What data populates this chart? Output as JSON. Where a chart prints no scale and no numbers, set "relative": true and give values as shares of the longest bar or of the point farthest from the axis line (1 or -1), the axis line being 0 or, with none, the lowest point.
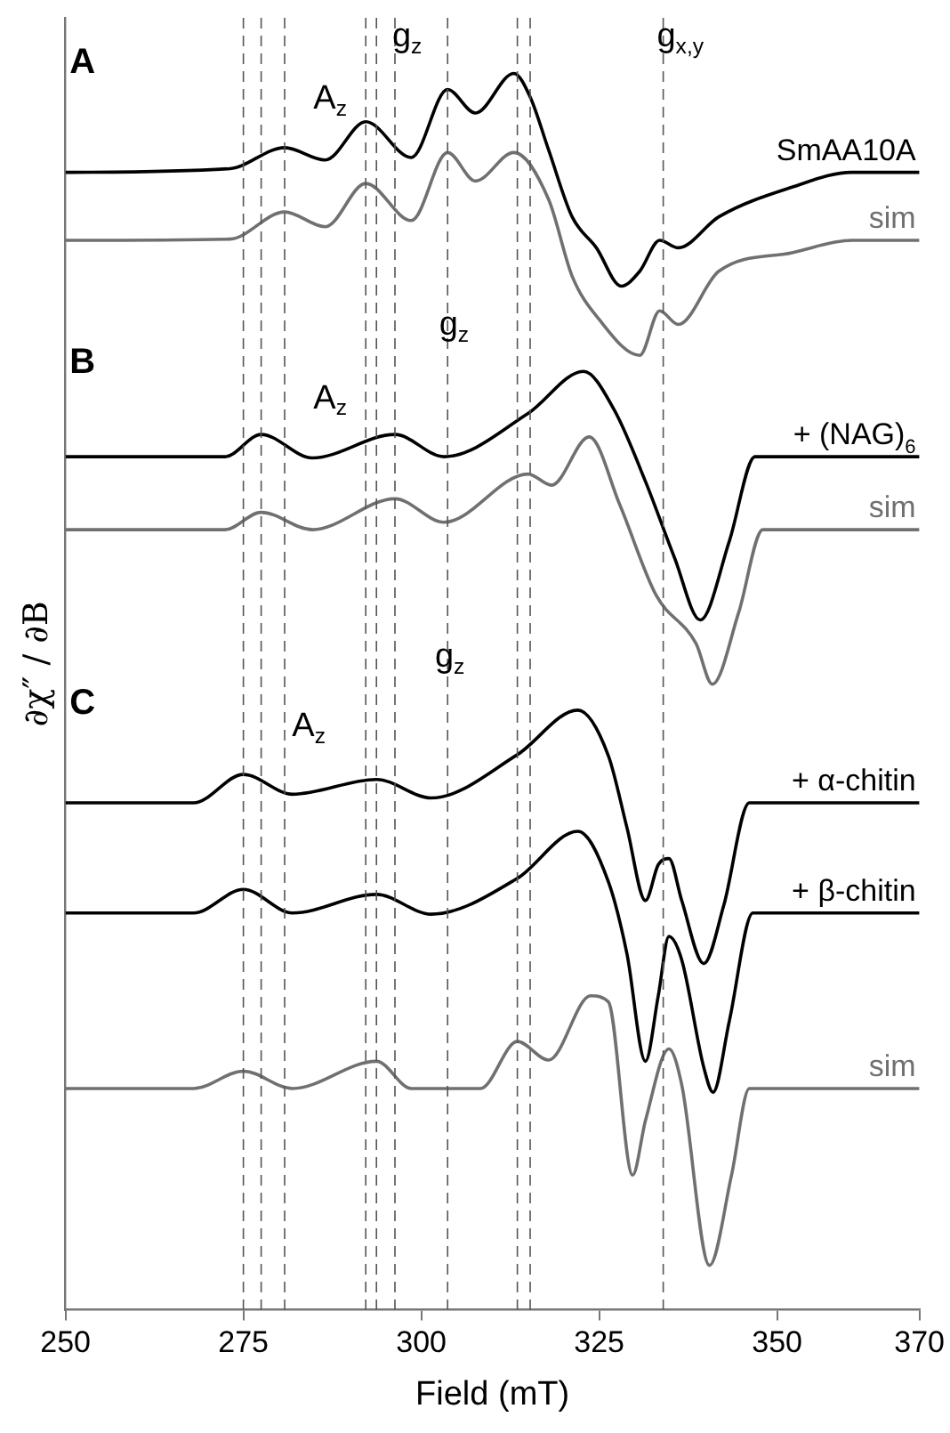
{
  "chart_data": {
    "type": "line",
    "relative": true,
    "xlabel": "Field (mT)",
    "ylabel": "∂χ″ / ∂B",
    "xlim": [
      250,
      370
    ],
    "xticks": [
      250,
      275,
      300,
      325,
      350,
      370
    ],
    "legend": false,
    "grid": false,
    "marker": "none",
    "line_style": "solid",
    "series": [
      {
        "name": "SmAA10A",
        "color": "#000000",
        "x": [
          250,
          273.1,
          280.8,
          286.5,
          292.2,
          298.6,
          303.7,
          307.6,
          313,
          315.3,
          317.9,
          321.2,
          324.6,
          328.1,
          330.7,
          333.5,
          336.1,
          341.8,
          352.1,
          360.5,
          370
        ],
        "values": [
          0.92,
          0.923,
          0.94,
          0.93,
          0.961,
          0.932,
          0.987,
          0.968,
          1,
          0.981,
          0.938,
          0.884,
          0.859,
          0.828,
          0.84,
          0.865,
          0.859,
          0.884,
          0.908,
          0.92,
          0.92
        ]
      },
      {
        "name": "sim",
        "color": "#707070",
        "x": [
          250,
          273.1,
          280.8,
          286.5,
          292.2,
          298.6,
          303.7,
          307.6,
          313,
          317.9,
          321.2,
          325,
          330.7,
          333.5,
          336.1,
          341.8,
          352.1,
          360.5,
          370
        ],
        "values": [
          0.865,
          0.866,
          0.888,
          0.876,
          0.911,
          0.881,
          0.936,
          0.913,
          0.936,
          0.898,
          0.836,
          0.801,
          0.772,
          0.808,
          0.797,
          0.84,
          0.855,
          0.865,
          0.865
        ]
      },
      {
        "name": "+ (NAG)$_{6}$",
        "color": "#000000",
        "x": [
          250,
          272.4,
          277.5,
          284.7,
          296.3,
          303.2,
          315,
          322.8,
          327.1,
          331.5,
          335.6,
          339.2,
          343.3,
          346.9,
          370
        ],
        "values": [
          0.69,
          0.69,
          0.708,
          0.689,
          0.708,
          0.69,
          0.725,
          0.759,
          0.728,
          0.67,
          0.608,
          0.558,
          0.622,
          0.69,
          0.69
        ]
      },
      {
        "name": "sim",
        "color": "#707070",
        "x": [
          250,
          272.4,
          277.5,
          284.7,
          296.3,
          303.2,
          315,
          318.3,
          323.6,
          327.9,
          333,
          338.6,
          340.9,
          344.6,
          348,
          370
        ],
        "values": [
          0.631,
          0.631,
          0.645,
          0.631,
          0.656,
          0.637,
          0.676,
          0.667,
          0.706,
          0.651,
          0.578,
          0.539,
          0.506,
          0.564,
          0.631,
          0.631
        ]
      },
      {
        "name": "+ α-chitin",
        "color": "#000000",
        "x": [
          250,
          268,
          275,
          281.9,
          293.7,
          301.4,
          313.5,
          322,
          326.3,
          328.9,
          331.5,
          333.3,
          334.8,
          336.6,
          339.7,
          342.5,
          346.1,
          370
        ],
        "values": [
          0.41,
          0.41,
          0.433,
          0.417,
          0.429,
          0.414,
          0.449,
          0.485,
          0.448,
          0.39,
          0.331,
          0.36,
          0.365,
          0.331,
          0.28,
          0.327,
          0.41,
          0.41
        ]
      },
      {
        "name": "+ β-chitin",
        "color": "#000000",
        "x": [
          250,
          268,
          275,
          281.9,
          293.7,
          301.4,
          313.5,
          322,
          326.3,
          328.9,
          331.5,
          333.3,
          334.8,
          336.6,
          339.7,
          341,
          343.3,
          346.6,
          370
        ],
        "values": [
          0.321,
          0.321,
          0.34,
          0.321,
          0.336,
          0.32,
          0.349,
          0.387,
          0.346,
          0.288,
          0.201,
          0.254,
          0.302,
          0.283,
          0.196,
          0.176,
          0.234,
          0.321,
          0.321
        ]
      },
      {
        "name": "sim",
        "color": "#707070",
        "x": [
          250,
          268,
          275,
          281.9,
          293.7,
          298.6,
          308.3,
          313.5,
          317.9,
          323.8,
          326.3,
          329.7,
          331.5,
          334.8,
          336.6,
          340.5,
          343.6,
          346.1,
          370
        ],
        "values": [
          0.179,
          0.179,
          0.193,
          0.179,
          0.201,
          0.179,
          0.179,
          0.217,
          0.202,
          0.254,
          0.249,
          0.109,
          0.153,
          0.211,
          0.182,
          0.036,
          0.109,
          0.179,
          0.179
        ]
      }
    ],
    "ref_lines": [
      {
        "axis": "x",
        "value": 280.8,
        "color": "#555555",
        "line_style": "dashed"
      },
      {
        "axis": "x",
        "value": 292.2,
        "color": "#555555",
        "line_style": "dashed"
      },
      {
        "axis": "x",
        "value": 303.7,
        "color": "#555555",
        "line_style": "dashed"
      },
      {
        "axis": "x",
        "value": 315.3,
        "color": "#555555",
        "line_style": "dashed"
      },
      {
        "axis": "x",
        "value": 277.5,
        "color": "#555555",
        "line_style": "dashed"
      },
      {
        "axis": "x",
        "value": 296.3,
        "color": "#555555",
        "line_style": "dashed"
      },
      {
        "axis": "x",
        "value": 334,
        "color": "#555555",
        "line_style": "dashed"
      },
      {
        "axis": "x",
        "value": 275,
        "color": "#555555",
        "line_style": "dashed"
      },
      {
        "axis": "x",
        "value": 293.7,
        "color": "#555555",
        "line_style": "dashed"
      },
      {
        "axis": "x",
        "value": 313.5,
        "color": "#555555",
        "line_style": "dashed"
      }
    ],
    "annotations": [
      "A",
      "g$_{z}$",
      "g$_{x,y}$",
      "A$_{z}$",
      "B",
      "g$_{z}$",
      "A$_{z}$",
      "C",
      "g$_{z}$",
      "A$_{z}$"
    ]
  }
}
